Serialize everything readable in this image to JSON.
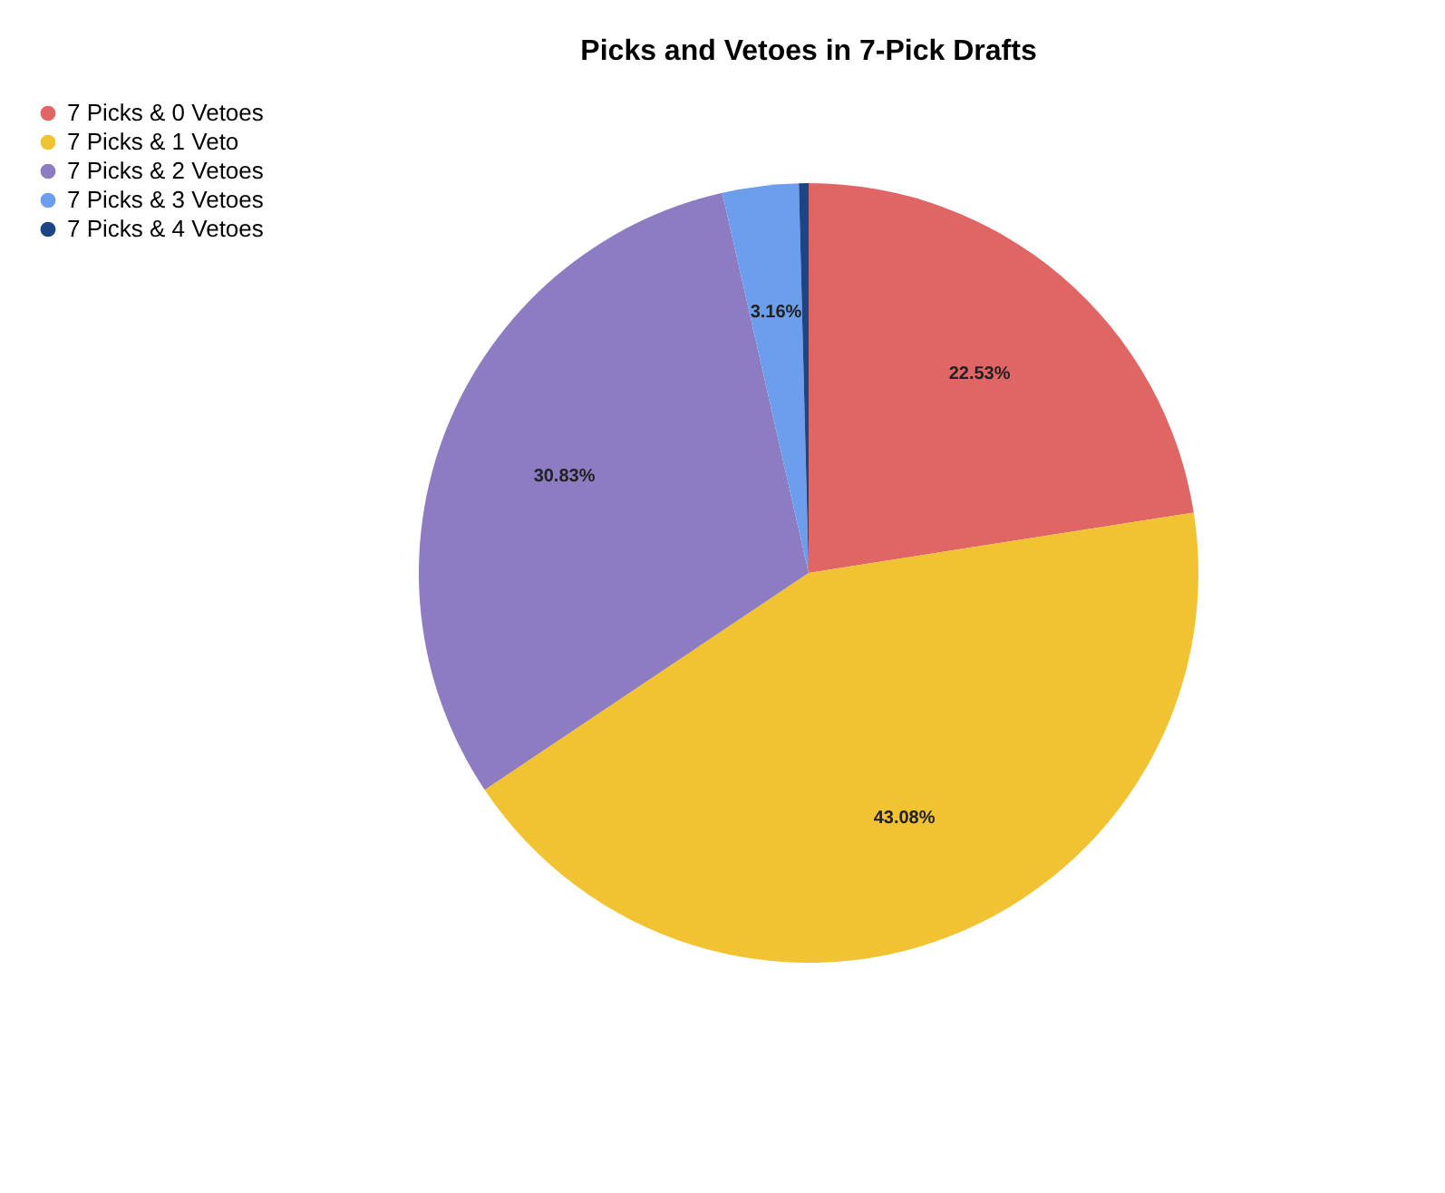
{
  "chart_data": {
    "type": "pie",
    "title": "Picks and Vetoes in 7-Pick Drafts",
    "categories": [
      "7 Picks & 0 Vetoes",
      "7 Picks & 1 Veto",
      "7 Picks & 2 Vetoes",
      "7 Picks & 3 Vetoes",
      "7 Picks & 4 Vetoes"
    ],
    "values": [
      22.53,
      43.08,
      30.83,
      3.16,
      0.4
    ],
    "colors": [
      "#e06666",
      "#f1c232",
      "#8e7cc3",
      "#6d9eeb",
      "#1c4587"
    ],
    "value_labels": [
      "22.53%",
      "43.08%",
      "30.83%",
      "3.16%",
      null
    ],
    "legend": "left"
  }
}
